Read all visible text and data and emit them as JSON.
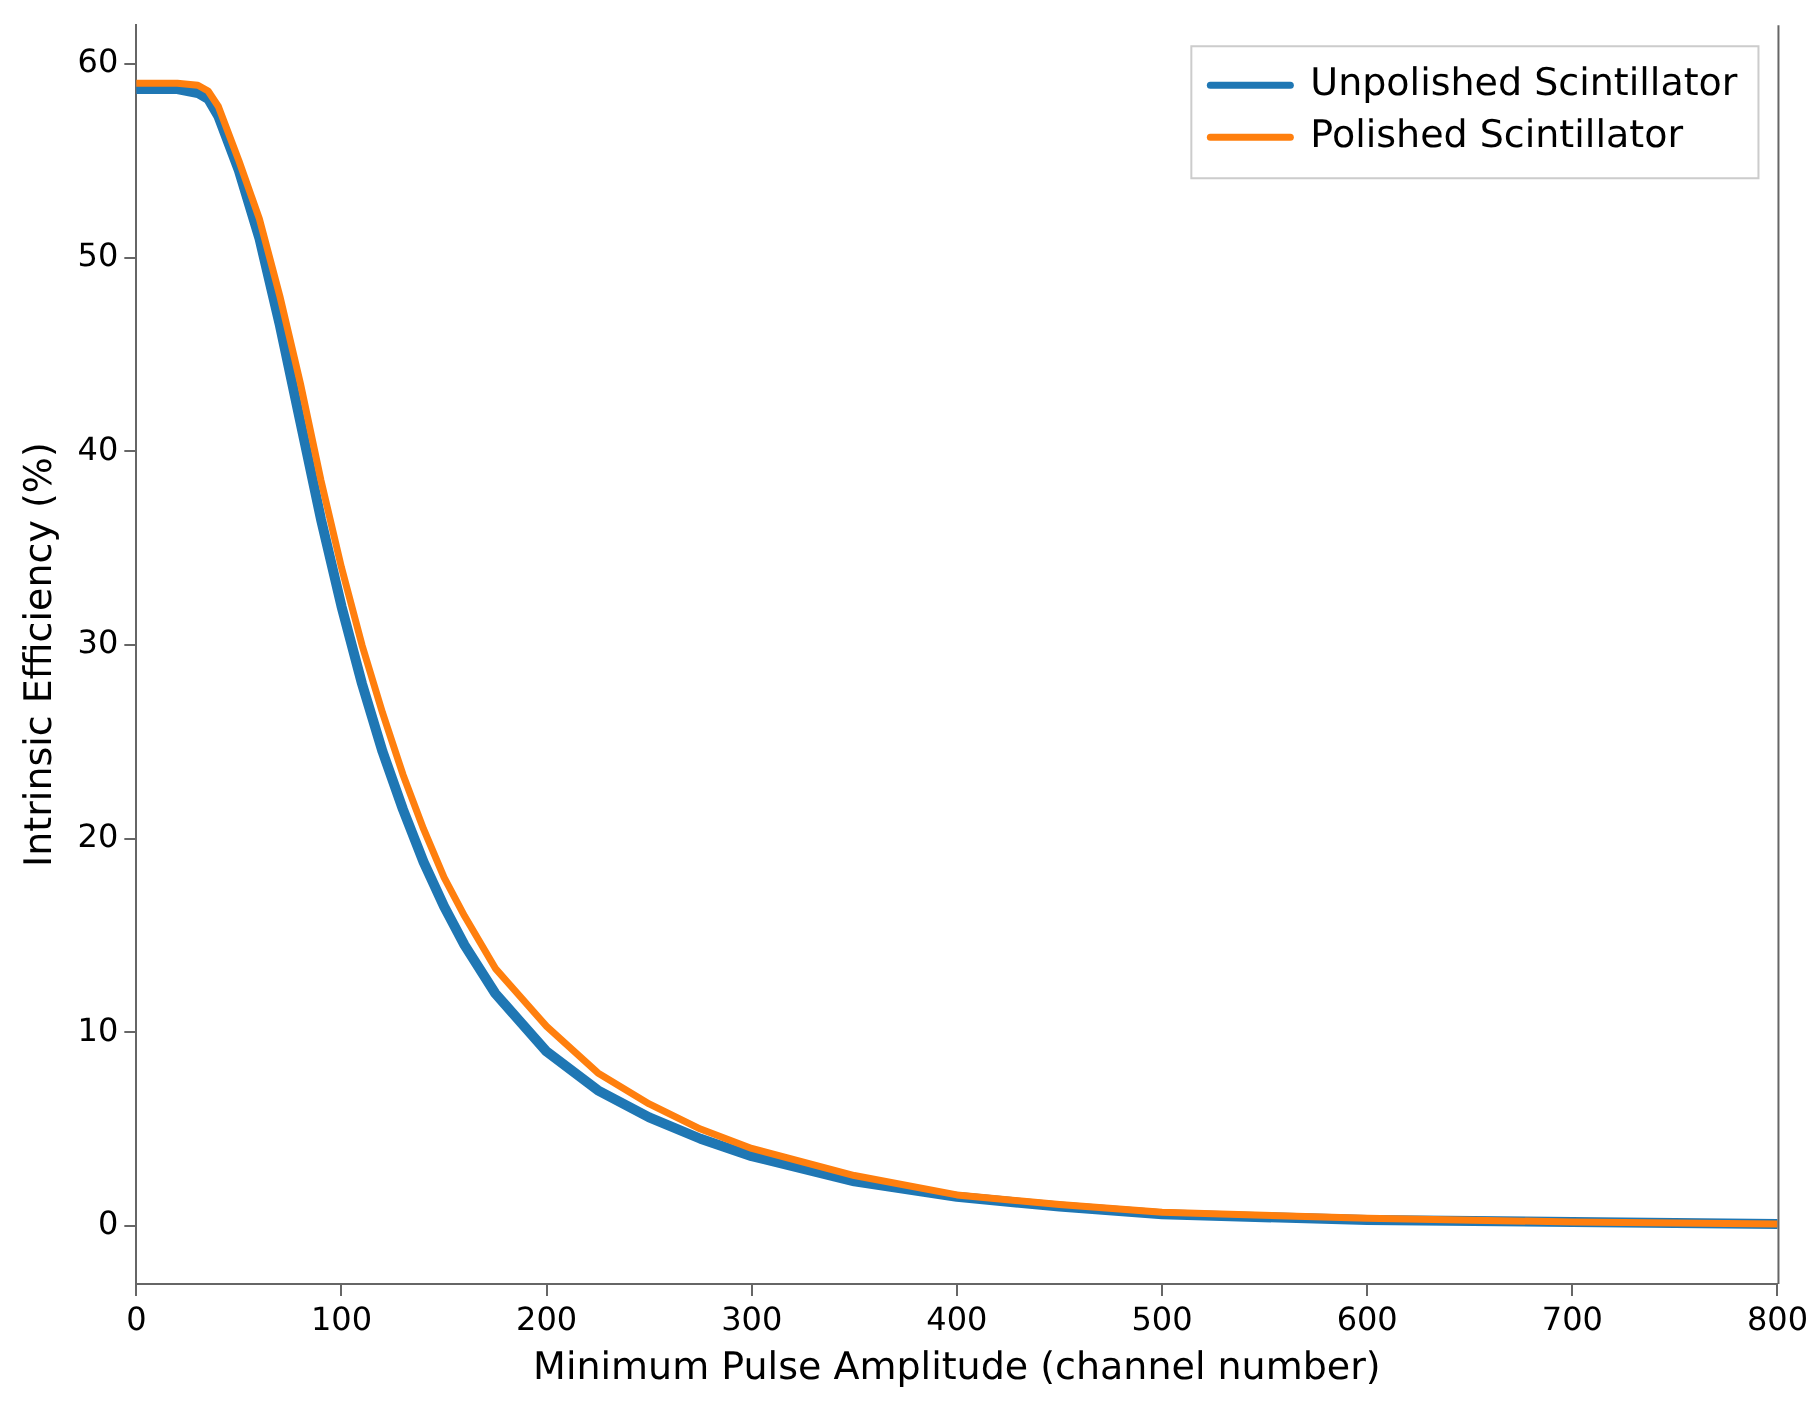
{
  "chart_data": {
    "type": "line",
    "xlabel": "Minimum Pulse Amplitude (channel number)",
    "ylabel": "Intrinsic Efficiency (%)",
    "xlim": [
      0,
      800
    ],
    "xticks": [
      0,
      100,
      200,
      300,
      400,
      500,
      600,
      700,
      800
    ],
    "ylim": [
      -3,
      62
    ],
    "yticks": [
      0,
      10,
      20,
      30,
      40,
      50,
      60
    ],
    "grid": false,
    "legend": "top right",
    "marker": "none",
    "line_style": "solid",
    "x": [
      0,
      20,
      30,
      35,
      40,
      50,
      60,
      70,
      80,
      90,
      100,
      110,
      120,
      130,
      140,
      150,
      160,
      175,
      200,
      225,
      250,
      275,
      300,
      350,
      400,
      450,
      500,
      600,
      700,
      800
    ],
    "series": [
      {
        "name": "Unpolished Scintillator",
        "color": "#1f77b4",
        "values": [
          58.7,
          58.7,
          58.5,
          58.2,
          57.3,
          54.5,
          51,
          46.5,
          41.5,
          36.5,
          32,
          28,
          24.5,
          21.5,
          18.8,
          16.5,
          14.5,
          12,
          9,
          7,
          5.6,
          4.5,
          3.6,
          2.3,
          1.5,
          1.0,
          0.6,
          0.3,
          0.2,
          0.1
        ]
      },
      {
        "name": "Polished Scintillator",
        "color": "#ff7f0e",
        "values": [
          59,
          59,
          58.9,
          58.6,
          57.8,
          55,
          52,
          48,
          43.5,
          38.5,
          34,
          30,
          26.5,
          23.3,
          20.5,
          18,
          16,
          13.3,
          10.3,
          7.9,
          6.3,
          5,
          4,
          2.6,
          1.6,
          1.1,
          0.7,
          0.4,
          0.2,
          0.1
        ]
      }
    ]
  }
}
